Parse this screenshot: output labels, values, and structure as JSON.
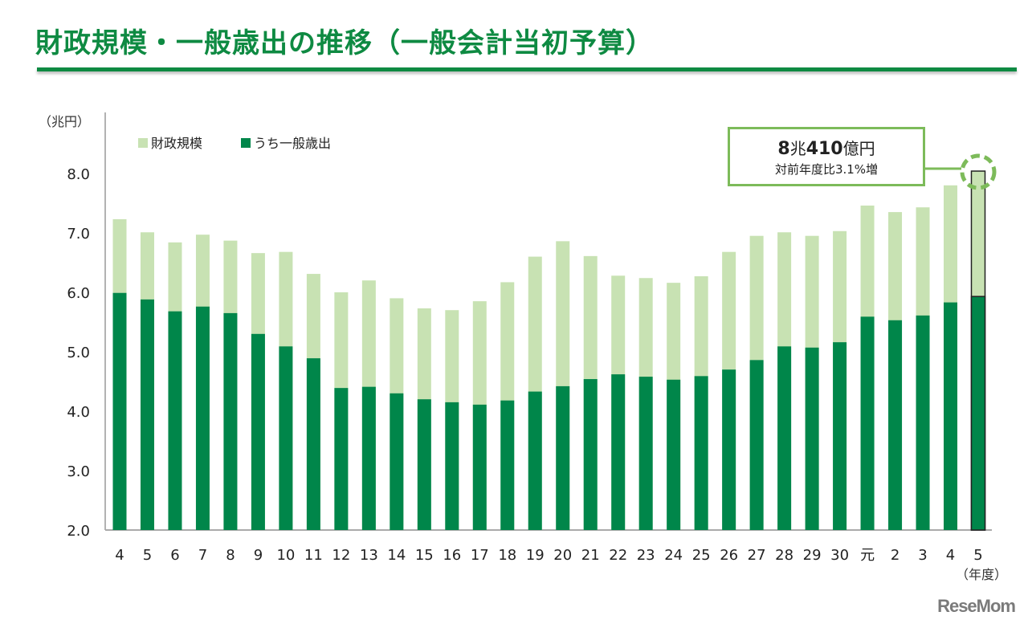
{
  "title": "財政規模・一般歳出の推移（一般会計当初予算）",
  "colors": {
    "accent": "#0e8a42",
    "total": "#c8e2b3",
    "general": "#00864a",
    "callout_border": "#7dbb5a"
  },
  "callout": {
    "amount_num1": "8",
    "amount_unit1": "兆",
    "amount_num2": "410",
    "amount_unit2": "億円",
    "sub": "対前年度比3.1%増"
  },
  "logo": "ReseMom",
  "chart_data": {
    "type": "bar",
    "stacked_overlay": true,
    "title": "財政規模・一般歳出の推移（一般会計当初予算）",
    "ylabel": "（兆円）",
    "xlabel": "（年度）",
    "ylim": [
      2.0,
      8.0
    ],
    "yticks": [
      "2.0",
      "3.0",
      "4.0",
      "5.0",
      "6.0",
      "7.0",
      "8.0"
    ],
    "ytick_values": [
      2,
      3,
      4,
      5,
      6,
      7,
      8
    ],
    "legend": [
      "財政規模",
      "うち一般歳出"
    ],
    "legend_position": "top-left",
    "categories": [
      "4",
      "5",
      "6",
      "7",
      "8",
      "9",
      "10",
      "11",
      "12",
      "13",
      "14",
      "15",
      "16",
      "17",
      "18",
      "19",
      "20",
      "21",
      "22",
      "23",
      "24",
      "25",
      "26",
      "27",
      "28",
      "29",
      "30",
      "元",
      "2",
      "3",
      "4",
      "5"
    ],
    "series": [
      {
        "name": "財政規模",
        "values": [
          7.23,
          7.01,
          6.84,
          6.97,
          6.87,
          6.66,
          6.68,
          6.31,
          6.0,
          6.2,
          5.9,
          5.73,
          5.7,
          5.85,
          6.17,
          6.6,
          6.86,
          6.61,
          6.28,
          6.24,
          6.16,
          6.27,
          6.68,
          6.95,
          7.01,
          6.95,
          7.03,
          7.46,
          7.35,
          7.43,
          7.8,
          8.04
        ]
      },
      {
        "name": "うち一般歳出",
        "values": [
          5.99,
          5.88,
          5.68,
          5.76,
          5.65,
          5.3,
          5.09,
          4.89,
          4.39,
          4.41,
          4.3,
          4.2,
          4.15,
          4.11,
          4.18,
          4.33,
          4.42,
          4.54,
          4.62,
          4.58,
          4.53,
          4.59,
          4.7,
          4.86,
          5.09,
          5.07,
          5.16,
          5.59,
          5.53,
          5.61,
          5.83,
          5.93
        ]
      }
    ],
    "highlight_category_index": 31
  }
}
